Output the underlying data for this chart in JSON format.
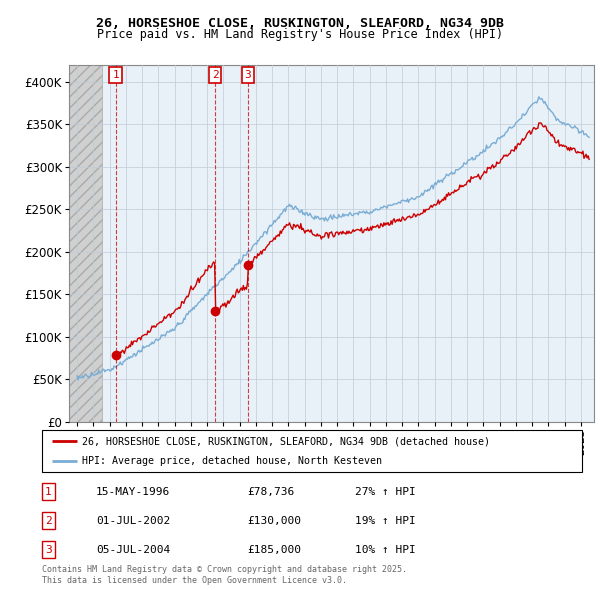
{
  "title_line1": "26, HORSESHOE CLOSE, RUSKINGTON, SLEAFORD, NG34 9DB",
  "title_line2": "Price paid vs. HM Land Registry's House Price Index (HPI)",
  "hpi_label": "HPI: Average price, detached house, North Kesteven",
  "property_label": "26, HORSESHOE CLOSE, RUSKINGTON, SLEAFORD, NG34 9DB (detached house)",
  "red_color": "#cc0000",
  "blue_color": "#7aadd4",
  "bg_plot_color": "#e8f0f8",
  "annotations": [
    {
      "label": "1",
      "date": "15-MAY-1996",
      "price": "£78,736",
      "hpi": "27% ↑ HPI"
    },
    {
      "label": "2",
      "date": "01-JUL-2002",
      "price": "£130,000",
      "hpi": "19% ↑ HPI"
    },
    {
      "label": "3",
      "date": "05-JUL-2004",
      "price": "£185,000",
      "hpi": "10% ↑ HPI"
    }
  ],
  "footer": "Contains HM Land Registry data © Crown copyright and database right 2025.\nThis data is licensed under the Open Government Licence v3.0.",
  "ylim": [
    0,
    420000
  ],
  "yticks": [
    0,
    50000,
    100000,
    150000,
    200000,
    250000,
    300000,
    350000,
    400000
  ],
  "ytick_labels": [
    "£0",
    "£50K",
    "£100K",
    "£150K",
    "£200K",
    "£250K",
    "£300K",
    "£350K",
    "£400K"
  ],
  "xlim_start": 1993.5,
  "xlim_end": 2025.8,
  "sale_years": [
    1996.37,
    2002.5,
    2004.5
  ],
  "sale_prices": [
    78736,
    130000,
    185000
  ],
  "hatch_end": 1995.5
}
